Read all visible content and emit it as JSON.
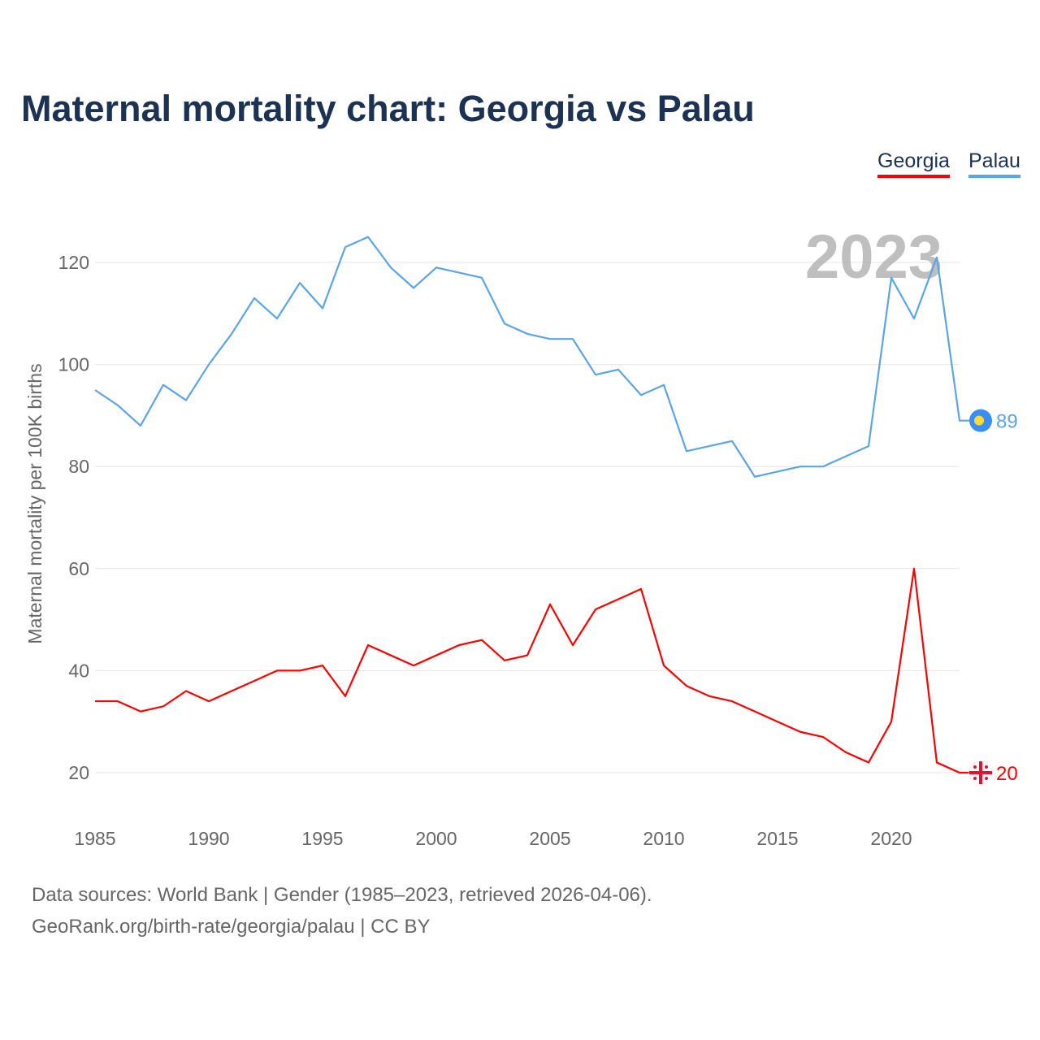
{
  "title": "Maternal mortality chart: Georgia vs Palau",
  "legend": {
    "georgia": "Georgia",
    "palau": "Palau"
  },
  "footer": {
    "line1": "Data sources: World Bank | Gender (1985–2023, retrieved 2026-04-06).",
    "line2": "GeoRank.org/birth-rate/georgia/palau | CC BY"
  },
  "chart_data": {
    "type": "line",
    "title": "Maternal mortality chart: Georgia vs Palau",
    "ylabel": "Maternal mortality per 100K births",
    "xlabel": "",
    "year_label": "2023",
    "xlim": [
      1985,
      2023
    ],
    "ylim": [
      10,
      130
    ],
    "xticks": [
      1985,
      1990,
      1995,
      2000,
      2005,
      2010,
      2015,
      2020
    ],
    "yticks": [
      20,
      40,
      60,
      80,
      100,
      120
    ],
    "grid": true,
    "legend_position": "top-right",
    "x": [
      1985,
      1986,
      1987,
      1988,
      1989,
      1990,
      1991,
      1992,
      1993,
      1994,
      1995,
      1996,
      1997,
      1998,
      1999,
      2000,
      2001,
      2002,
      2003,
      2004,
      2005,
      2006,
      2007,
      2008,
      2009,
      2010,
      2011,
      2012,
      2013,
      2014,
      2015,
      2016,
      2017,
      2018,
      2019,
      2020,
      2021,
      2022,
      2023
    ],
    "series": [
      {
        "name": "Georgia",
        "color": "#ff0000",
        "end_label": "20",
        "values": [
          34,
          34,
          32,
          33,
          36,
          34,
          36,
          38,
          40,
          40,
          41,
          35,
          45,
          43,
          41,
          43,
          45,
          46,
          42,
          43,
          53,
          45,
          52,
          54,
          56,
          41,
          37,
          35,
          34,
          32,
          30,
          28,
          27,
          24,
          22,
          30,
          60,
          22,
          20
        ]
      },
      {
        "name": "Palau",
        "color": "#5ba4ea",
        "end_label": "89",
        "values": [
          95,
          92,
          88,
          96,
          93,
          100,
          106,
          113,
          109,
          116,
          111,
          123,
          125,
          119,
          115,
          119,
          118,
          117,
          108,
          106,
          105,
          105,
          98,
          99,
          94,
          96,
          83,
          84,
          85,
          78,
          79,
          80,
          80,
          82,
          84,
          117,
          109,
          121,
          89
        ]
      }
    ]
  }
}
